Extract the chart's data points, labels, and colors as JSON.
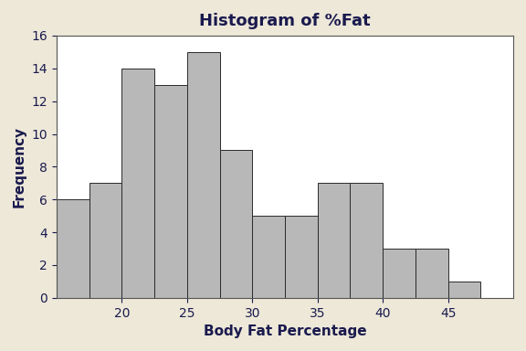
{
  "title": "Histogram of %Fat",
  "xlabel": "Body Fat Percentage",
  "ylabel": "Frequency",
  "bin_start": 15,
  "bin_width": 2.5,
  "bar_heights": [
    6,
    7,
    14,
    13,
    15,
    9,
    5,
    5,
    7,
    7,
    3,
    3,
    1
  ],
  "bar_color": "#b8b8b8",
  "bar_edgecolor": "#2a2a2a",
  "bar_linewidth": 0.7,
  "background_color": "#ede8d8",
  "plot_bg_color": "#ffffff",
  "xlim": [
    15,
    50
  ],
  "ylim": [
    0,
    16
  ],
  "xticks": [
    20,
    25,
    30,
    35,
    40,
    45
  ],
  "yticks": [
    0,
    2,
    4,
    6,
    8,
    10,
    12,
    14,
    16
  ],
  "title_fontsize": 13,
  "title_fontweight": "bold",
  "label_fontsize": 11,
  "label_fontweight": "bold",
  "tick_fontsize": 10,
  "title_color": "#1a1a4e",
  "label_color": "#1a1a4e",
  "tick_color": "#1a1a4e",
  "spine_color": "#555555",
  "spine_linewidth": 0.8
}
